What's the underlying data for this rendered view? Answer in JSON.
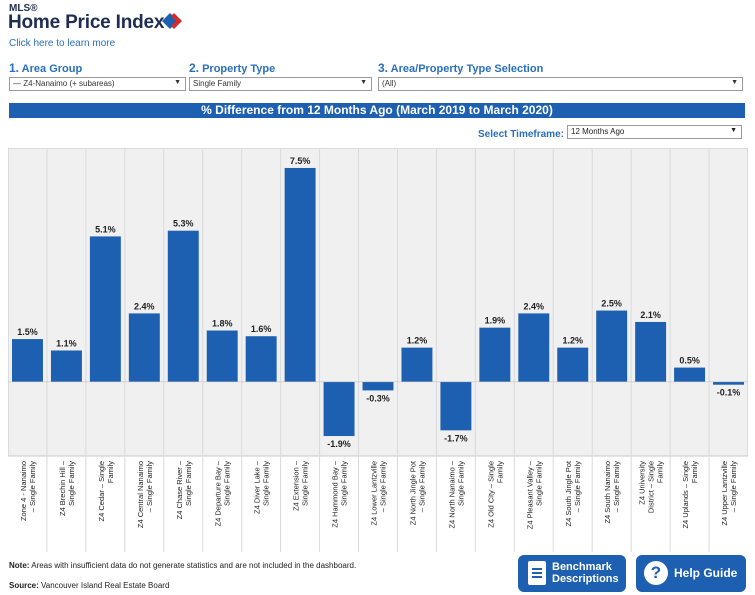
{
  "brand": {
    "mls": "MLS®",
    "title": "Home Price Index",
    "learn_more": "Click here to learn more",
    "mark_colors": [
      "#1d5fb1",
      "#d52b2b"
    ]
  },
  "filters": {
    "area_group": {
      "num": "1.",
      "label": "Area Group",
      "value": "— Z4-Nanaimo (+ subareas)"
    },
    "property_type": {
      "num": "2.",
      "label": "Property Type",
      "value": "Single Family"
    },
    "selection": {
      "num": "3.",
      "label": "Area/Property Type Selection",
      "value": "(All)"
    }
  },
  "banner": "% Difference from 12 Months Ago (March 2019 to March 2020)",
  "timeframe": {
    "label": "Select Timeframe:",
    "value": "12 Months Ago"
  },
  "chart_data": {
    "type": "bar",
    "title": "% Difference from 12 Months Ago (March 2019 to March 2020)",
    "categories": [
      "Zone 4 - Nanaimo – Single Family",
      "Z4 Brechin Hill – Single Family",
      "Z4 Cedar – Single Family",
      "Z4 Central Nanaimo – Single Family",
      "Z4 Chase River – Single Family",
      "Z4 Departure Bay – Single Family",
      "Z4 Diver Lake – Single Family",
      "Z4 Extension – Single Family",
      "Z4 Hammond Bay – Single Family",
      "Z4 Lower Lantzville – Single Family",
      "Z4 North Jingle Pot – Single Family",
      "Z4 North Nanaimo – Single Family",
      "Z4 Old City – Single Family",
      "Z4 Pleasant Valley – Single Family",
      "Z4 South Jingle Pot – Single Family",
      "Z4 South Nanaimo – Single Family",
      "Z4 University District – Single Family",
      "Z4 Uplands – Single Family",
      "Z4 Upper Lantzville – Single Family"
    ],
    "category_lines": [
      [
        "Zone 4 - Nanaimo",
        "– Single Family"
      ],
      [
        "Z4 Brechin Hill –",
        "Single Family"
      ],
      [
        "Z4 Cedar – Single",
        "Family"
      ],
      [
        "Z4 Central Nanaimo",
        "– Single Family"
      ],
      [
        "Z4 Chase River –",
        "Single Family"
      ],
      [
        "Z4 Departure Bay –",
        "Single Family"
      ],
      [
        "Z4 Diver Lake –",
        "Single Family"
      ],
      [
        "Z4 Extension –",
        "Single Family"
      ],
      [
        "Z4 Hammond Bay –",
        "Single Family"
      ],
      [
        "Z4 Lower Lantzville",
        "– Single Family"
      ],
      [
        "Z4 North Jingle Pot",
        "– Single Family"
      ],
      [
        "Z4 North Nanaimo –",
        "Single Family"
      ],
      [
        "Z4 Old City – Single",
        "Family"
      ],
      [
        "Z4 Pleasant Valley –",
        "Single Family"
      ],
      [
        "Z4 South Jingle Pot",
        "– Single Family"
      ],
      [
        "Z4 South Nanaimo",
        "– Single Family"
      ],
      [
        "Z4 University",
        "District – Single",
        "Family"
      ],
      [
        "Z4 Uplands – Single",
        "Family"
      ],
      [
        "Z4 Upper Lantzville",
        "– Single Family"
      ]
    ],
    "values": [
      1.5,
      1.1,
      5.1,
      2.4,
      5.3,
      1.8,
      1.6,
      7.5,
      -1.9,
      -0.3,
      1.2,
      -1.7,
      1.9,
      2.4,
      1.2,
      2.5,
      2.1,
      0.5,
      -0.1
    ],
    "labels": [
      "1.5%",
      "1.1%",
      "5.1%",
      "2.4%",
      "5.3%",
      "1.8%",
      "1.6%",
      "7.5%",
      "-1.9%",
      "-0.3%",
      "1.2%",
      "-1.7%",
      "1.9%",
      "2.4%",
      "1.2%",
      "2.5%",
      "2.1%",
      "0.5%",
      "-0.1%"
    ],
    "ylim": [
      -2.6,
      8.2
    ],
    "bar_color": "#1d5fb1",
    "background": "#f0f0f0",
    "grid": false
  },
  "footer": {
    "note_label": "Note:",
    "note_text": " Areas with insufficient data do not generate statistics and are not included in the dashboard.",
    "source_label": "Source:",
    "source_text": " Vancouver Island Real Estate Board"
  },
  "buttons": {
    "benchmark_line1": "Benchmark",
    "benchmark_line2": "Descriptions",
    "help": "Help Guide",
    "help_glyph": "?"
  }
}
